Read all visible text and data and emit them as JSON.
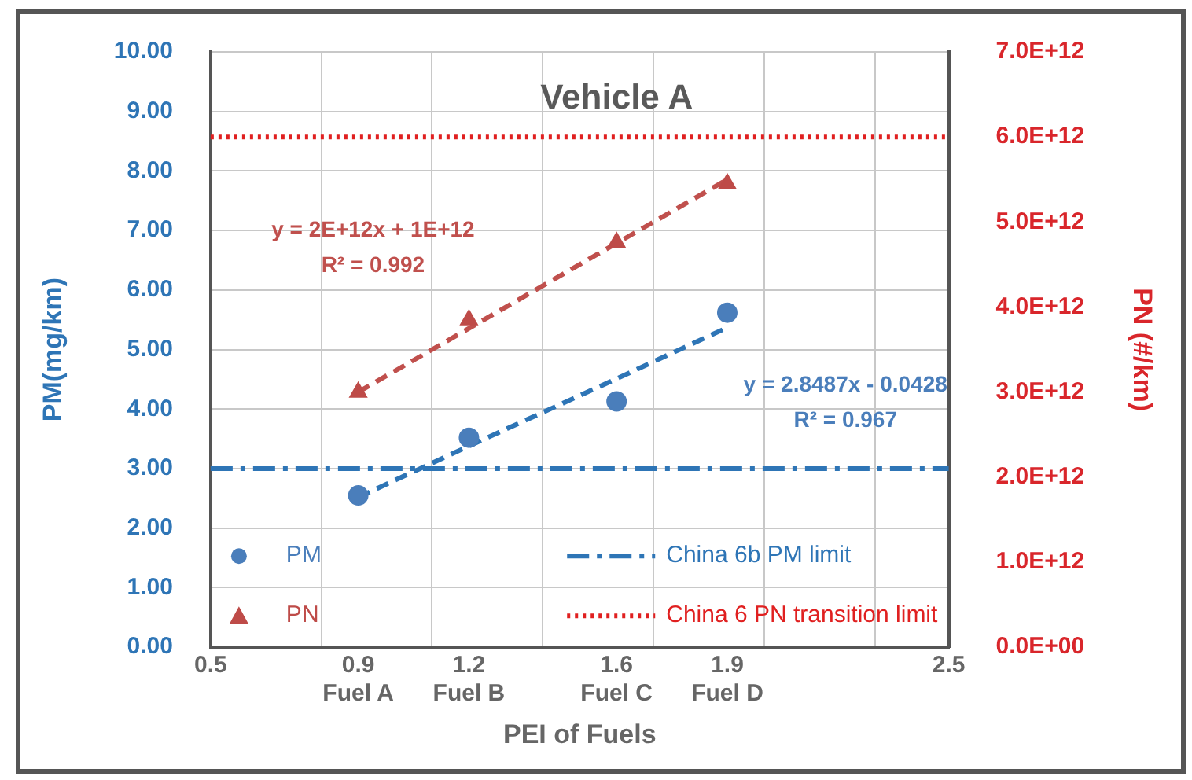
{
  "chart_data": {
    "type": "scatter",
    "title": "Vehicle A",
    "xlabel": "PEI of Fuels",
    "ylabel": "PM(mg/km)",
    "y2label": "PN (#/km)",
    "xlim": [
      0.5,
      2.5
    ],
    "xticks": [
      0.5,
      {
        "value": 0.8,
        "label": null
      },
      {
        "value": 0.9,
        "label": "0.9\nFuel A"
      },
      {
        "value": 1.1,
        "label": null
      },
      {
        "value": 1.2,
        "label": "1.2\nFuel B"
      },
      {
        "value": 1.4,
        "label": null
      },
      {
        "value": 1.6,
        "label": "1.6\nFuel C"
      },
      {
        "value": 1.7,
        "label": null
      },
      {
        "value": 1.9,
        "label": "1.9\nFuel D"
      },
      {
        "value": 2.0,
        "label": null
      },
      {
        "value": 2.3,
        "label": null
      },
      2.5
    ],
    "ylim": [
      0,
      10
    ],
    "yticks": [
      {
        "value": 0,
        "label": "0.00"
      },
      {
        "value": 1,
        "label": "1.00"
      },
      {
        "value": 2,
        "label": "2.00"
      },
      {
        "value": 3,
        "label": "3.00"
      },
      {
        "value": 4,
        "label": "4.00"
      },
      {
        "value": 5,
        "label": "5.00"
      },
      {
        "value": 6,
        "label": "6.00"
      },
      {
        "value": 7,
        "label": "7.00"
      },
      {
        "value": 8,
        "label": "8.00"
      },
      {
        "value": 9,
        "label": "9.00"
      },
      {
        "value": 10,
        "label": "10.00"
      }
    ],
    "y2lim": [
      0,
      7000000000000.0
    ],
    "y2ticks": [
      {
        "value": 0,
        "label": "0.0E+00"
      },
      {
        "value": 1000000000000.0,
        "label": "1.0E+12"
      },
      {
        "value": 2000000000000.0,
        "label": "2.0E+12"
      },
      {
        "value": 3000000000000.0,
        "label": "3.0E+12"
      },
      {
        "value": 4000000000000.0,
        "label": "4.0E+12"
      },
      {
        "value": 5000000000000.0,
        "label": "5.0E+12"
      },
      {
        "value": 6000000000000.0,
        "label": "6.0E+12"
      },
      {
        "value": 7000000000000.0,
        "label": "7.0E+12"
      }
    ],
    "x": [
      0.9,
      1.2,
      1.6,
      1.9
    ],
    "series": [
      {
        "name": "PM",
        "color": "#4a7ebb",
        "marker": "circle",
        "values": [
          2.55,
          3.52,
          4.13,
          5.62
        ]
      },
      {
        "name": "PN",
        "color": "#be4b48",
        "marker": "triangle",
        "axis": "y2",
        "values": [
          3000000000000.0,
          3850000000000.0,
          4760000000000.0,
          5450000000000.0
        ]
      },
      {
        "type": "line",
        "color": "#2e75b6",
        "line_style": "dashed",
        "values": [
          2.52,
          3.38,
          4.51,
          5.37
        ]
      },
      {
        "type": "line",
        "color": "#c0504d",
        "line_style": "dashed",
        "axis": "y2",
        "values": [
          3000000000000.0,
          3750000000000.0,
          4750000000000.0,
          5500000000000.0
        ]
      }
    ],
    "ref_lines": [
      {
        "axis": "y",
        "value": 3,
        "label": "China 6b PM limit",
        "color": "#2e75b6",
        "line_style": "dashdot"
      },
      {
        "axis": "y2",
        "value": 6000000000000.0,
        "label": "China 6 PN transition limit",
        "color": "#e02020",
        "line_style": "dotted"
      }
    ],
    "annotations": [
      "y = 2E+12x + 1E+12",
      "R² = 0.992",
      "y = 2.8487x - 0.0428",
      "R² = 0.967"
    ],
    "grid": true,
    "legend": "bottom"
  }
}
